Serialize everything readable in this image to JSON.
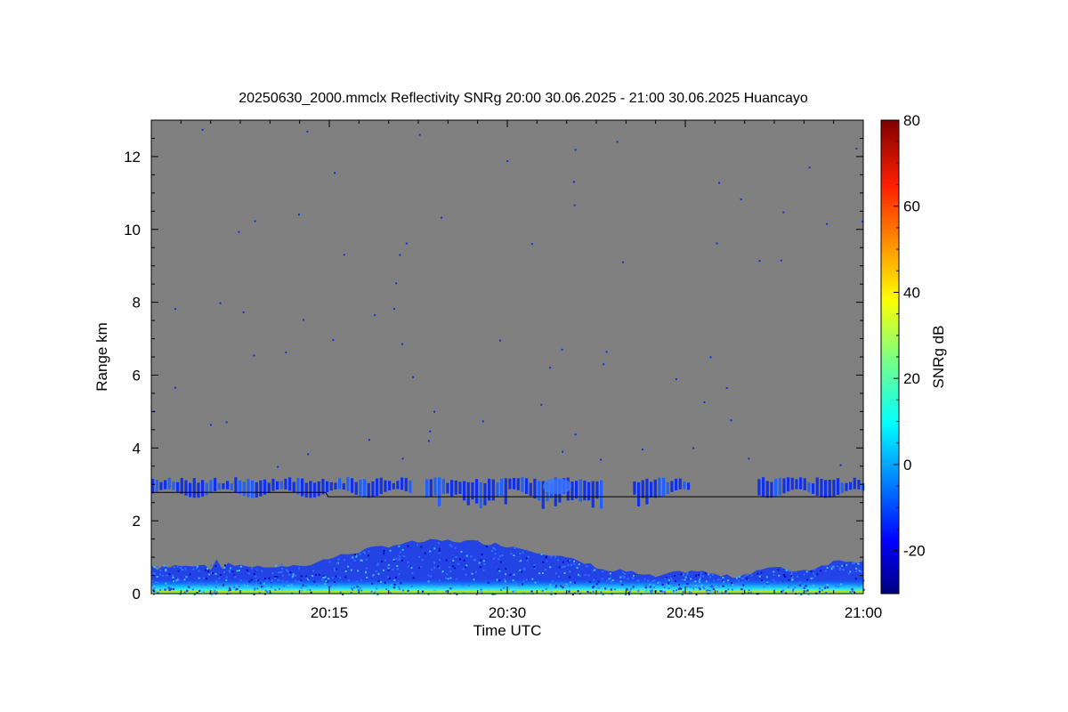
{
  "chart_data": {
    "type": "heatmap",
    "title": "20250630_2000.mmclx Reflectivity SNRg   20:00 30.06.2025 - 21:00 30.06.2025 Huancayo",
    "xlabel": "Time UTC",
    "ylabel": "Range km",
    "colorbar_label": "SNRg dB",
    "x_range": [
      "20:00",
      "21:00"
    ],
    "xlim_minutes": [
      0,
      60
    ],
    "x_ticks": [
      {
        "minute": 15,
        "label": "20:15"
      },
      {
        "minute": 30,
        "label": "20:30"
      },
      {
        "minute": 45,
        "label": "20:45"
      },
      {
        "minute": 60,
        "label": "21:00"
      }
    ],
    "ylim": [
      0,
      13
    ],
    "y_ticks": [
      {
        "value": 0,
        "label": "0"
      },
      {
        "value": 2,
        "label": "2"
      },
      {
        "value": 4,
        "label": "4"
      },
      {
        "value": 6,
        "label": "6"
      },
      {
        "value": 8,
        "label": "8"
      },
      {
        "value": 10,
        "label": "10"
      },
      {
        "value": 12,
        "label": "12"
      }
    ],
    "colorbar_range": [
      -30,
      80
    ],
    "colorbar_ticks": [
      {
        "value": -20,
        "label": "-20"
      },
      {
        "value": 0,
        "label": "0"
      },
      {
        "value": 20,
        "label": "20"
      },
      {
        "value": 40,
        "label": "40"
      },
      {
        "value": 60,
        "label": "60"
      },
      {
        "value": 80,
        "label": "80"
      }
    ],
    "background_color": "#808080",
    "colormap": [
      "#00008f",
      "#0000ff",
      "#00ffff",
      "#ffff00",
      "#ff0000",
      "#800000"
    ],
    "grid": false
  }
}
